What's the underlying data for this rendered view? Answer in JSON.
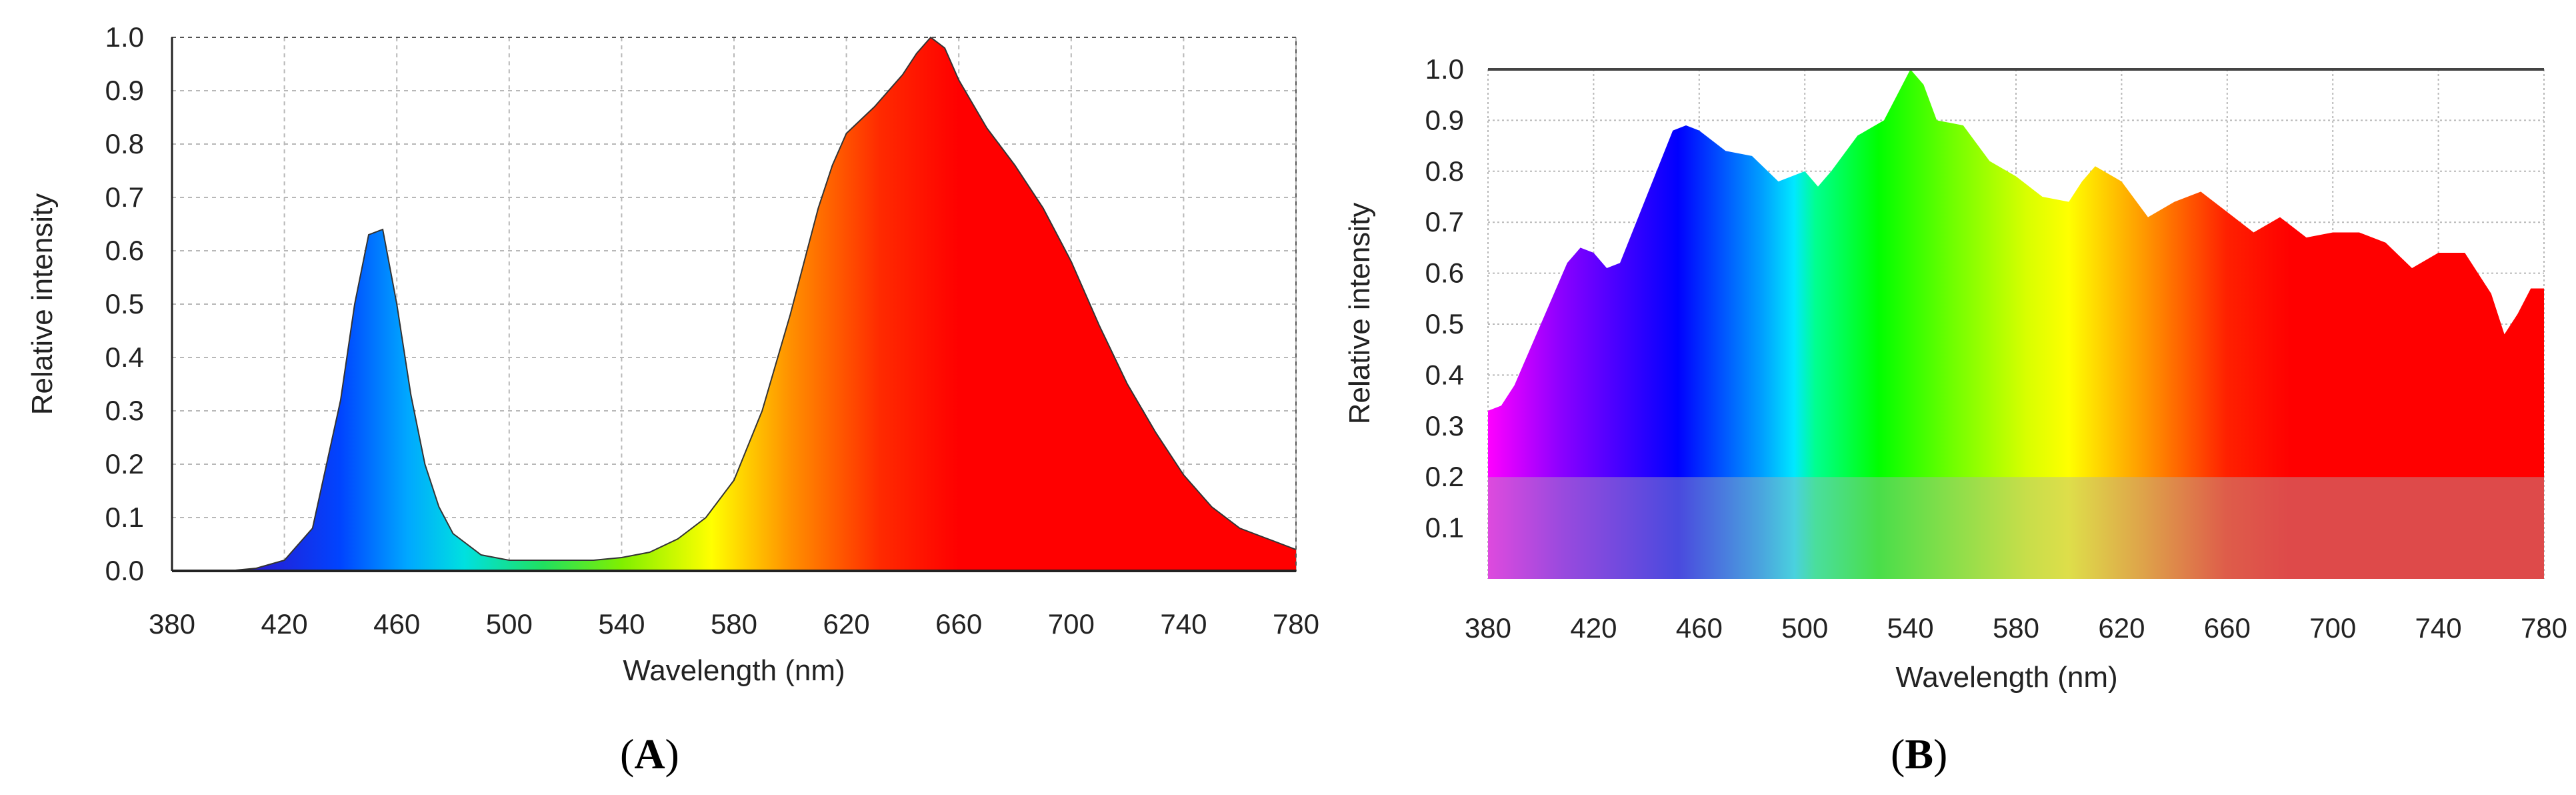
{
  "chart_data": [
    {
      "panel_label": "A",
      "type": "area",
      "xlabel": "Wavelength (nm)",
      "ylabel": "Relative intensity",
      "xlim": [
        380,
        780
      ],
      "ylim": [
        0,
        1.0
      ],
      "x_ticks": [
        "380",
        "420",
        "460",
        "500",
        "540",
        "580",
        "620",
        "660",
        "700",
        "740",
        "780"
      ],
      "y_ticks": [
        "0.0",
        "0.1",
        "0.2",
        "0.3",
        "0.4",
        "0.5",
        "0.6",
        "0.7",
        "0.8",
        "0.9",
        "1.0"
      ],
      "grid": true,
      "fill": "visible-spectrum gradient",
      "x": [
        380,
        400,
        410,
        420,
        430,
        440,
        445,
        450,
        455,
        460,
        465,
        470,
        475,
        480,
        490,
        500,
        510,
        520,
        530,
        540,
        550,
        560,
        570,
        580,
        590,
        600,
        610,
        615,
        620,
        630,
        640,
        645,
        650,
        655,
        660,
        670,
        680,
        690,
        700,
        710,
        720,
        730,
        740,
        750,
        760,
        770,
        780
      ],
      "y": [
        0.0,
        0.0,
        0.005,
        0.02,
        0.08,
        0.32,
        0.5,
        0.63,
        0.64,
        0.5,
        0.33,
        0.2,
        0.12,
        0.07,
        0.03,
        0.02,
        0.02,
        0.02,
        0.02,
        0.025,
        0.035,
        0.06,
        0.1,
        0.17,
        0.3,
        0.48,
        0.68,
        0.76,
        0.82,
        0.87,
        0.93,
        0.97,
        1.0,
        0.98,
        0.92,
        0.83,
        0.76,
        0.68,
        0.58,
        0.46,
        0.35,
        0.26,
        0.18,
        0.12,
        0.08,
        0.06,
        0.04
      ]
    },
    {
      "panel_label": "B",
      "type": "area",
      "xlabel": "Wavelength (nm)",
      "ylabel": "Relative intensity",
      "xlim": [
        380,
        780
      ],
      "ylim": [
        0,
        1.0
      ],
      "x_ticks": [
        "380",
        "420",
        "460",
        "500",
        "540",
        "580",
        "620",
        "660",
        "700",
        "740",
        "780"
      ],
      "y_ticks": [
        "0.1",
        "0.2",
        "0.3",
        "0.4",
        "0.5",
        "0.6",
        "0.7",
        "0.8",
        "0.9",
        "1.0"
      ],
      "grid": true,
      "fill": "visible-spectrum gradient",
      "x": [
        380,
        385,
        390,
        400,
        410,
        415,
        420,
        425,
        430,
        440,
        450,
        455,
        460,
        470,
        480,
        490,
        500,
        505,
        510,
        520,
        530,
        535,
        540,
        545,
        550,
        560,
        570,
        580,
        590,
        600,
        605,
        610,
        620,
        630,
        640,
        650,
        660,
        670,
        680,
        690,
        700,
        710,
        720,
        730,
        740,
        750,
        760,
        765,
        770,
        775,
        780
      ],
      "y": [
        0.33,
        0.34,
        0.38,
        0.5,
        0.62,
        0.65,
        0.64,
        0.61,
        0.62,
        0.75,
        0.88,
        0.89,
        0.88,
        0.84,
        0.83,
        0.78,
        0.8,
        0.77,
        0.8,
        0.87,
        0.9,
        0.95,
        1.0,
        0.97,
        0.9,
        0.89,
        0.82,
        0.79,
        0.75,
        0.74,
        0.78,
        0.81,
        0.78,
        0.71,
        0.74,
        0.76,
        0.72,
        0.68,
        0.71,
        0.67,
        0.68,
        0.68,
        0.66,
        0.61,
        0.64,
        0.64,
        0.56,
        0.48,
        0.52,
        0.57,
        0.57
      ]
    }
  ]
}
